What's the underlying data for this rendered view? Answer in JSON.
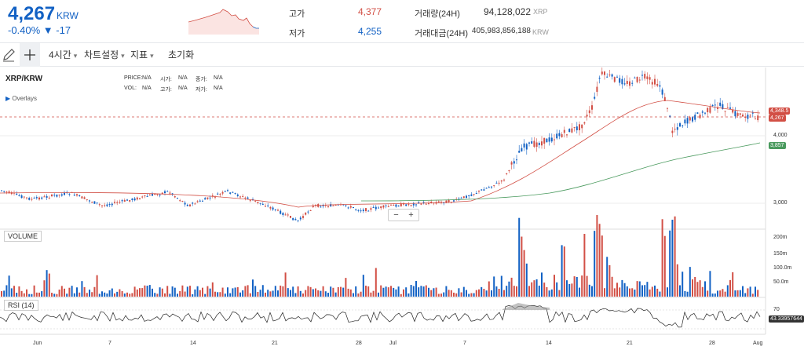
{
  "header": {
    "price": "4,267",
    "price_unit": "KRW",
    "change": "-0.40% ▼ -17",
    "stats": {
      "high_label": "고가",
      "high_value": "4,377",
      "low_label": "저가",
      "low_value": "4,255",
      "volume_label": "거래량(24H)",
      "volume_value": "94,128,022",
      "volume_unit": "XRP",
      "amount_label": "거래대금(24H)",
      "amount_value": "405,983,856,188",
      "amount_unit": "KRW"
    },
    "colors": {
      "up": "#d24f45",
      "down": "#1261c4"
    }
  },
  "toolbar": {
    "pencil_icon": "pencil-icon",
    "crosshair_icon": "crosshair-icon",
    "interval": "4시간",
    "chart_settings": "차트설정",
    "indicators": "지표",
    "reset": "초기화"
  },
  "chart": {
    "symbol": "XRP/KRW",
    "overlays": "Overlays",
    "ohlc": [
      {
        "k": "PRICE:",
        "v": "N/A"
      },
      {
        "k": "시가:",
        "v": "N/A"
      },
      {
        "k": "종가:",
        "v": "N/A"
      },
      {
        "k": "VOL:",
        "v": "N/A"
      },
      {
        "k": "고가:",
        "v": "N/A"
      },
      {
        "k": "저가:",
        "v": "N/A"
      }
    ],
    "price_axis": [
      "4,000",
      "3,000"
    ],
    "price_tags": {
      "ma": "4,348.5",
      "last": "4,267",
      "ma_long": "3,857"
    },
    "volume_label": "VOLUME",
    "volume_axis": [
      "200m",
      "150m",
      "100.0m",
      "50.0m"
    ],
    "rsi_label": "RSI (14)",
    "rsi_axis": [
      "70"
    ],
    "rsi_value": "43.33957644",
    "x_labels": [
      "Jun",
      "7",
      "14",
      "21",
      "28",
      "Jul",
      "7",
      "14",
      "21",
      "28",
      "Aug"
    ],
    "zoom_out": "−",
    "zoom_in": "+"
  }
}
